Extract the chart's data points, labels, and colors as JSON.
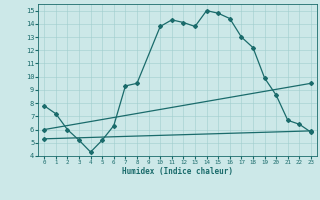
{
  "xlabel": "Humidex (Indice chaleur)",
  "xlim": [
    -0.5,
    23.5
  ],
  "ylim": [
    4,
    15.5
  ],
  "xticks": [
    0,
    1,
    2,
    3,
    4,
    5,
    6,
    7,
    8,
    9,
    10,
    11,
    12,
    13,
    14,
    15,
    16,
    17,
    18,
    19,
    20,
    21,
    22,
    23
  ],
  "yticks": [
    4,
    5,
    6,
    7,
    8,
    9,
    10,
    11,
    12,
    13,
    14,
    15
  ],
  "bg_color": "#cce8e8",
  "line_color": "#1a6b6b",
  "line1_x": [
    0,
    1,
    2,
    3,
    4,
    5,
    6,
    7,
    8,
    10,
    11,
    12,
    13,
    14,
    15,
    16,
    17,
    18,
    19,
    20,
    21,
    22,
    23
  ],
  "line1_y": [
    7.8,
    7.2,
    6.0,
    5.2,
    4.3,
    5.2,
    6.3,
    9.3,
    9.5,
    13.8,
    14.3,
    14.1,
    13.8,
    15.0,
    14.8,
    14.4,
    13.0,
    12.2,
    9.9,
    8.6,
    6.7,
    6.4,
    5.8
  ],
  "line2_x": [
    0,
    23
  ],
  "line2_y": [
    6.0,
    9.5
  ],
  "line3_x": [
    0,
    23
  ],
  "line3_y": [
    5.3,
    5.9
  ],
  "figsize": [
    3.2,
    2.0
  ],
  "dpi": 100
}
